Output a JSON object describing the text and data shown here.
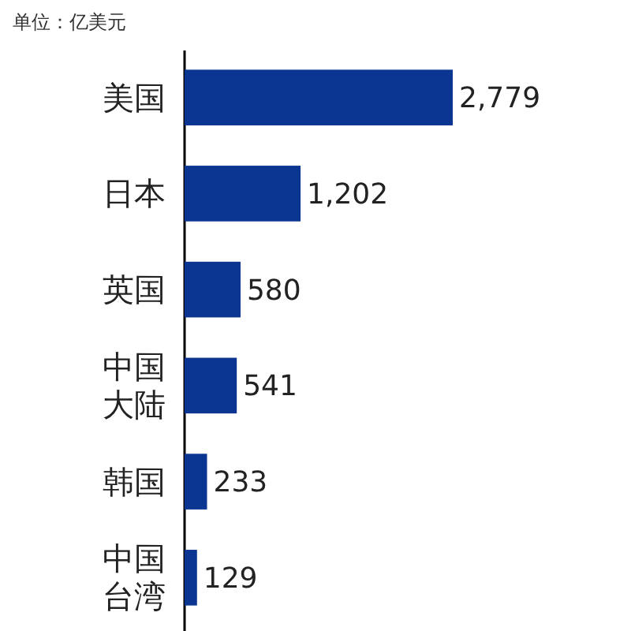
{
  "chart_data": {
    "type": "bar",
    "orientation": "horizontal",
    "subtitle": "单位：亿美元",
    "categories": [
      "美国",
      "日本",
      "英国",
      "中国大陆",
      "韩国",
      "中国台湾"
    ],
    "values": [
      2779,
      1202,
      580,
      541,
      233,
      129
    ],
    "value_labels": [
      "2,779",
      "1,202",
      "580",
      "541",
      "233",
      "129"
    ],
    "color": "#0a3590"
  }
}
